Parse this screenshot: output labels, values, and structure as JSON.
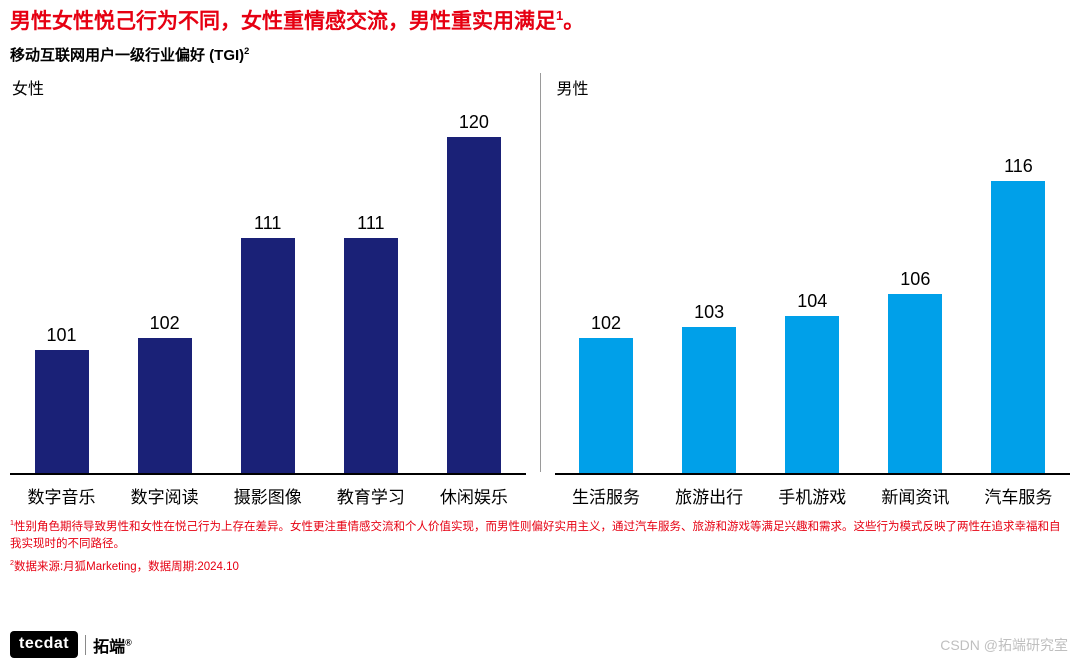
{
  "title": {
    "text": "男性女性悦己行为不同，女性重情感交流，男性重实用满足",
    "sup": "1",
    "tail": "。"
  },
  "subtitle": {
    "text": "移动互联网用户一级行业偏好 (TGI)",
    "sup": "2"
  },
  "colors": {
    "title_red": "#E60012",
    "female_bar": "#1A2177",
    "male_bar": "#00A0E9",
    "divider_gray": "#9a9a9a",
    "watermark_gray": "#BFBFBF"
  },
  "chart_data": [
    {
      "type": "bar",
      "title": "女性",
      "categories": [
        "数字音乐",
        "数字阅读",
        "摄影图像",
        "教育学习",
        "休闲娱乐"
      ],
      "values": [
        101,
        102,
        111,
        111,
        120
      ],
      "bar_color": "#1A2177",
      "ylim": [
        90,
        123
      ],
      "grid": false,
      "legend": "none",
      "xlabel": "",
      "ylabel": ""
    },
    {
      "type": "bar",
      "title": "男性",
      "categories": [
        "生活服务",
        "旅游出行",
        "手机游戏",
        "新闻资讯",
        "汽车服务"
      ],
      "values": [
        102,
        103,
        104,
        106,
        116
      ],
      "bar_color": "#00A0E9",
      "ylim": [
        90,
        123
      ],
      "grid": false,
      "legend": "none",
      "xlabel": "",
      "ylabel": ""
    }
  ],
  "footnotes": [
    {
      "sup": "1",
      "text": "性别角色期待导致男性和女性在悦己行为上存在差异。女性更注重情感交流和个人价值实现，而男性则偏好实用主义，通过汽车服务、旅游和游戏等满足兴趣和需求。这些行为模式反映了两性在追求幸福和自我实现时的不同路径。"
    },
    {
      "sup": "2",
      "text": "数据来源:月狐Marketing，数据周期:2024.10"
    }
  ],
  "logo": {
    "mark": "tecdat",
    "brand": "拓端",
    "reg": "®"
  },
  "watermark": "CSDN @拓端研究室"
}
